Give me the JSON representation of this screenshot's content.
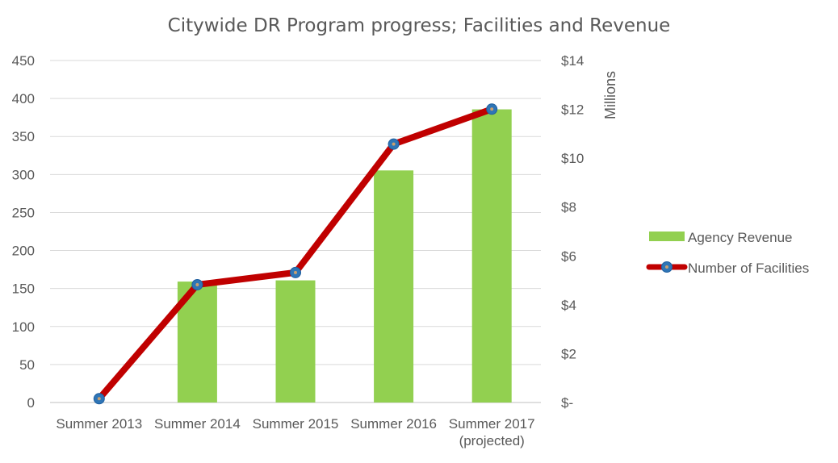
{
  "chart_data": {
    "type": "bar",
    "title": "Citywide DR Program progress; Facilities and Revenue",
    "categories": [
      "Summer 2013",
      "Summer 2014",
      "Summer 2015",
      "Summer 2016",
      "Summer 2017\n(projected)"
    ],
    "series": [
      {
        "name": "Agency Revenue",
        "type": "bar",
        "axis": "right",
        "values": [
          0,
          4.95,
          5.0,
          9.5,
          12.0
        ],
        "color": "#92d050"
      },
      {
        "name": "Number of Facilities",
        "type": "line",
        "axis": "left",
        "values": [
          5,
          155,
          171,
          340,
          386
        ],
        "color": "#c00000",
        "marker_color": "#2e75b6"
      }
    ],
    "y_left": {
      "range": [
        0,
        450
      ],
      "ticks": [
        "0",
        "50",
        "100",
        "150",
        "200",
        "250",
        "300",
        "350",
        "400",
        "450"
      ]
    },
    "y_right": {
      "label": "Millions",
      "range": [
        0,
        14
      ],
      "ticks": [
        "$-",
        "$2",
        "$4",
        "$6",
        "$8",
        "$10",
        "$12",
        "$14"
      ]
    },
    "grid": true,
    "legend": {
      "position": "right",
      "entries": [
        "Agency Revenue",
        "Number of Facilities"
      ]
    }
  }
}
